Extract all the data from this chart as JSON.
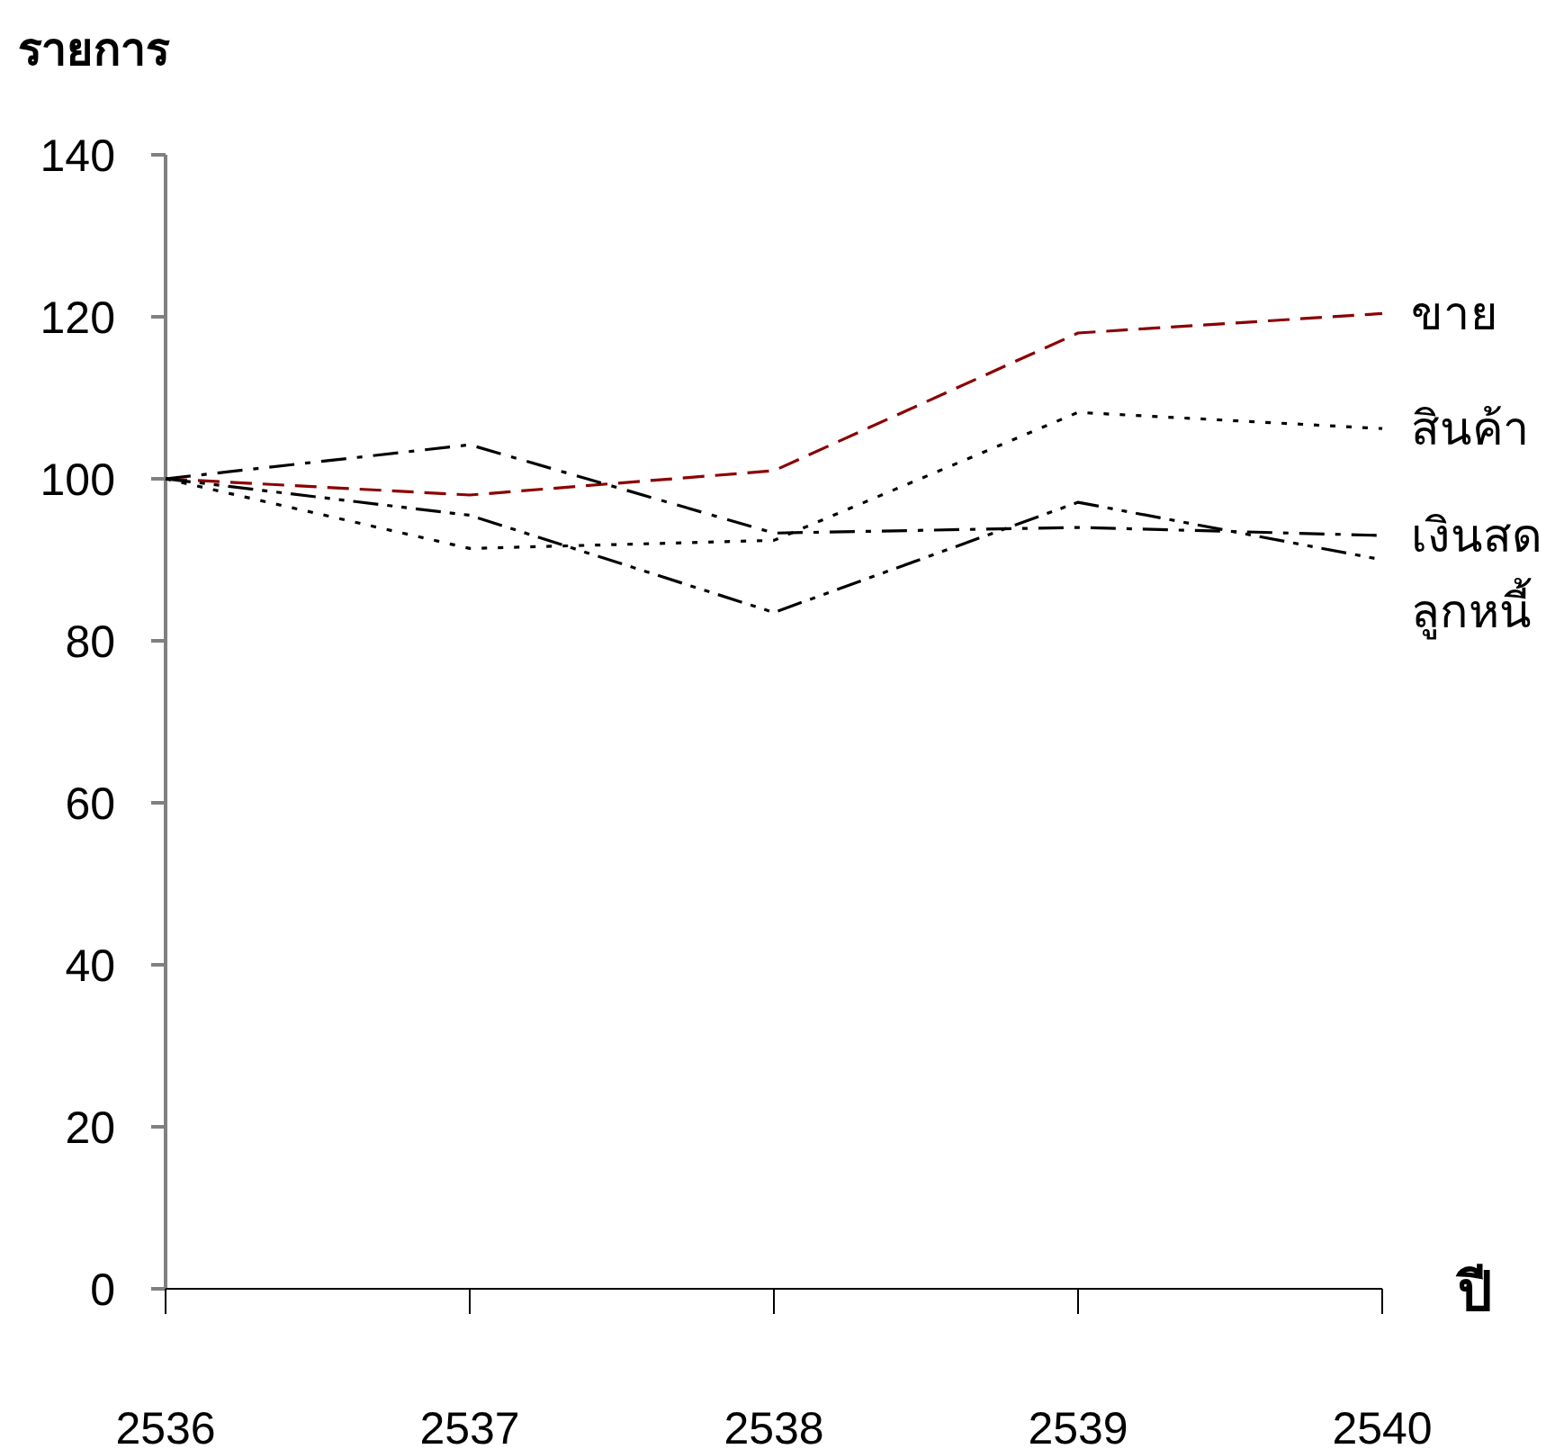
{
  "chart_data": {
    "type": "line",
    "ylabel": "รายการ",
    "xlabel": "ปี",
    "x": [
      2536,
      2537,
      2538,
      2539,
      2540
    ],
    "xlim": [
      2536,
      2540
    ],
    "xticks": [
      2536,
      2537,
      2538,
      2539,
      2540
    ],
    "ylim": [
      0,
      140
    ],
    "yticks": [
      0,
      20,
      40,
      60,
      80,
      100,
      120,
      140
    ],
    "series": [
      {
        "name": "ขาย",
        "color": "#8b0000",
        "line_style": "dashed",
        "values": [
          100,
          98,
          101,
          118,
          120.4
        ]
      },
      {
        "name": "สินค้า",
        "color": "#000000",
        "line_style": "dotted",
        "values": [
          100,
          91.4,
          92.4,
          108.2,
          106.2
        ]
      },
      {
        "name": "เงินสด",
        "color": "#000000",
        "line_style": "dashdot",
        "values": [
          100,
          104.2,
          93.3,
          94,
          93
        ]
      },
      {
        "name": "ลูกหนี้",
        "color": "#000000",
        "line_style": "dashdotdot",
        "values": [
          100,
          95.5,
          83.5,
          97.1,
          90
        ]
      }
    ]
  }
}
